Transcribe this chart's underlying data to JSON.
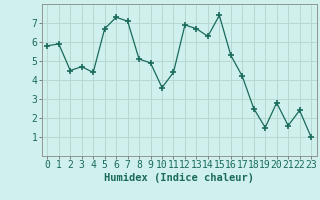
{
  "x": [
    0,
    1,
    2,
    3,
    4,
    5,
    6,
    7,
    8,
    9,
    10,
    11,
    12,
    13,
    14,
    15,
    16,
    17,
    18,
    19,
    20,
    21,
    22,
    23
  ],
  "y": [
    5.8,
    5.9,
    4.5,
    4.7,
    4.4,
    6.7,
    7.3,
    7.1,
    5.1,
    4.9,
    3.6,
    4.4,
    6.9,
    6.7,
    6.3,
    7.4,
    5.3,
    4.2,
    2.5,
    1.5,
    2.8,
    1.6,
    2.4,
    1.0
  ],
  "line_color": "#1a6b5a",
  "marker": "+",
  "marker_size": 5,
  "bg_color": "#cff0ec",
  "grid_color": "#b8d8d4",
  "xlabel": "Humidex (Indice chaleur)",
  "xlabel_fontsize": 7.5,
  "tick_fontsize": 7,
  "ylim": [
    0,
    8
  ],
  "xlim": [
    -0.5,
    23.5
  ],
  "yticks": [
    1,
    2,
    3,
    4,
    5,
    6,
    7
  ],
  "xticks": [
    0,
    1,
    2,
    3,
    4,
    5,
    6,
    7,
    8,
    9,
    10,
    11,
    12,
    13,
    14,
    15,
    16,
    17,
    18,
    19,
    20,
    21,
    22,
    23
  ]
}
